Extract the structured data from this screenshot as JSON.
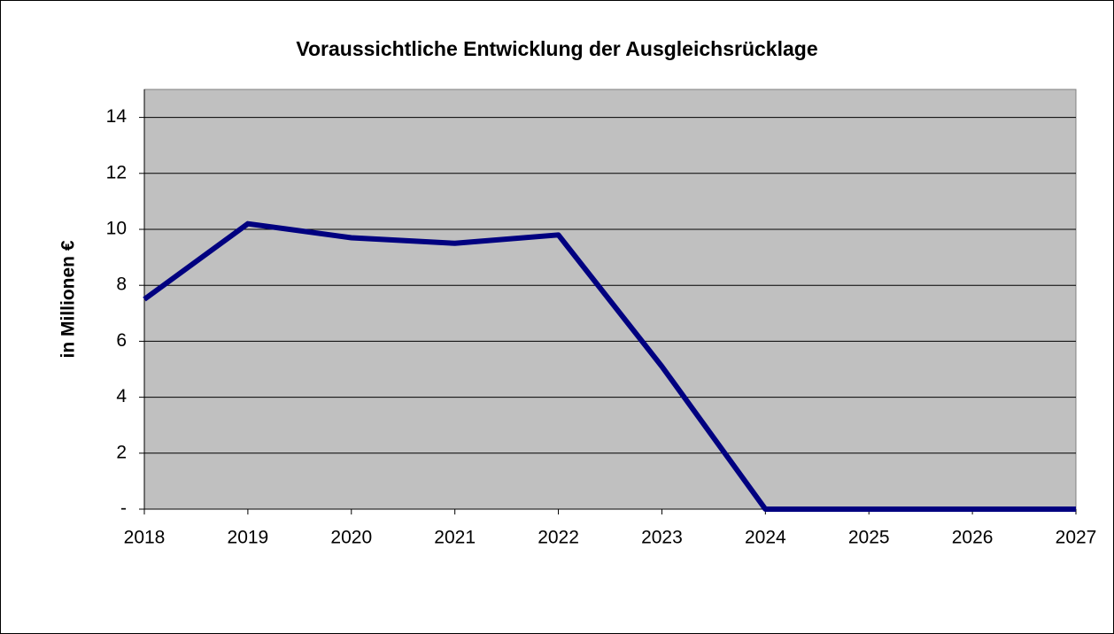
{
  "chart_data": {
    "type": "line",
    "title": "Voraussichtliche Entwicklung der Ausgleichsrücklage",
    "y_label": "in Millionen €",
    "x": [
      2018,
      2019,
      2020,
      2021,
      2022,
      2023,
      2024,
      2025,
      2026,
      2027
    ],
    "xlim": [
      2018,
      2027
    ],
    "xticks": [
      2018,
      2019,
      2020,
      2021,
      2022,
      2023,
      2024,
      2025,
      2026,
      2027
    ],
    "series": [
      {
        "name": "Ausgleichsrücklage",
        "color": "#000080",
        "values": [
          7.5,
          10.2,
          9.7,
          9.5,
          9.8,
          5.1,
          0,
          0,
          0,
          0
        ]
      }
    ],
    "ylim": [
      0,
      15
    ],
    "yticks": [
      {
        "value": 0,
        "label": "-"
      },
      2,
      4,
      6,
      8,
      10,
      12,
      14
    ],
    "grid": true,
    "plot_background": "#c0c0c0"
  }
}
